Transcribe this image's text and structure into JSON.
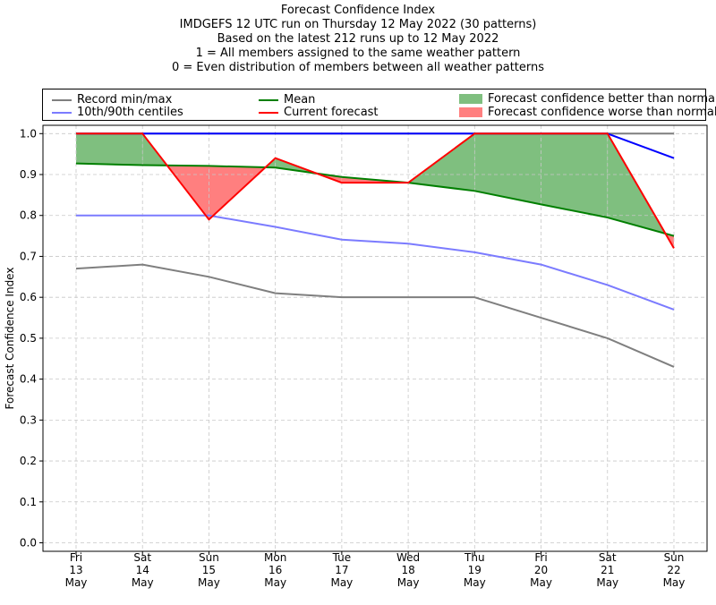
{
  "title_lines": [
    "Forecast Confidence Index",
    "IMDGEFS 12 UTC run on Thursday 12 May 2022 (30 patterns)",
    "Based on the latest 212 runs up to 12 May 2022",
    "1 = All members assigned to the same weather pattern",
    "0 = Even distribution of members between all weather patterns"
  ],
  "legend": {
    "record": "Record min/max",
    "centiles": "10th/90th centiles",
    "mean": "Mean",
    "current": "Current forecast",
    "better": "Forecast confidence better than normal",
    "worse": "Forecast confidence worse than normal"
  },
  "colors": {
    "record": "#7f7f7f",
    "centiles": "#7b7bff",
    "mean": "#007f00",
    "current": "#ff0000",
    "better": "#7fbf7f",
    "worse": "#ff7f7f",
    "top_blue": "#0000ff"
  },
  "chart_data": {
    "type": "line",
    "title": "Forecast Confidence Index",
    "xlabel": "",
    "ylabel": "Forecast Confidence Index",
    "ylim": [
      0,
      1
    ],
    "yticks": [
      "0.0",
      "0.1",
      "0.2",
      "0.3",
      "0.4",
      "0.5",
      "0.6",
      "0.7",
      "0.8",
      "0.9",
      "1.0"
    ],
    "categories": [
      [
        "Fri",
        "13",
        "May"
      ],
      [
        "Sat",
        "14",
        "May"
      ],
      [
        "Sun",
        "15",
        "May"
      ],
      [
        "Mon",
        "16",
        "May"
      ],
      [
        "Tue",
        "17",
        "May"
      ],
      [
        "Wed",
        "18",
        "May"
      ],
      [
        "Thu",
        "19",
        "May"
      ],
      [
        "Fri",
        "20",
        "May"
      ],
      [
        "Sat",
        "21",
        "May"
      ],
      [
        "Sun",
        "22",
        "May"
      ]
    ],
    "series": [
      {
        "name": "Record max",
        "key": "record",
        "values": [
          1.0,
          1.0,
          1.0,
          1.0,
          1.0,
          1.0,
          1.0,
          1.0,
          1.0,
          1.0
        ]
      },
      {
        "name": "Record min",
        "key": "record",
        "values": [
          0.67,
          0.68,
          0.65,
          0.61,
          0.6,
          0.6,
          0.6,
          0.55,
          0.5,
          0.43
        ]
      },
      {
        "name": "90th centile",
        "key": "top_blue",
        "values": [
          1.0,
          1.0,
          1.0,
          1.0,
          1.0,
          1.0,
          1.0,
          1.0,
          1.0,
          0.94
        ]
      },
      {
        "name": "10th centile",
        "key": "centiles",
        "values": [
          0.8,
          0.8,
          0.8,
          0.772,
          0.741,
          0.731,
          0.71,
          0.68,
          0.63,
          0.57
        ]
      },
      {
        "name": "Mean",
        "key": "mean",
        "values": [
          0.927,
          0.923,
          0.921,
          0.917,
          0.894,
          0.88,
          0.86,
          0.827,
          0.795,
          0.75
        ]
      },
      {
        "name": "Current forecast",
        "key": "current",
        "values": [
          1.0,
          1.0,
          0.79,
          0.94,
          0.88,
          0.88,
          1.0,
          1.0,
          1.0,
          0.72
        ]
      }
    ],
    "grid": true,
    "legend_position": "top"
  }
}
